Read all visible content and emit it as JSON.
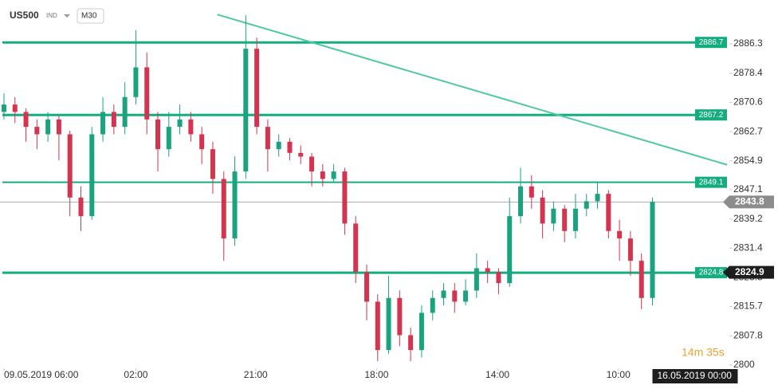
{
  "header": {
    "symbol": "US500",
    "market": "IND",
    "timeframe": "M30"
  },
  "timer": "14m 35s",
  "chart_data": {
    "type": "candlestick",
    "open": [
      2868,
      2870,
      2868,
      2864,
      2862,
      2866,
      2862,
      2845,
      2840,
      2862,
      2868,
      2864,
      2872,
      2880,
      2866,
      2858,
      2864,
      2866,
      2862,
      2858,
      2850,
      2834,
      2852,
      2885,
      2864,
      2858,
      2860,
      2857,
      2856,
      2852,
      2850,
      2852,
      2838,
      2825,
      2817,
      2804,
      2818,
      2808,
      2804,
      2814,
      2818,
      2820,
      2817,
      2820,
      2826,
      2825,
      2822,
      2840,
      2848,
      2845,
      2838,
      2842,
      2836,
      2842,
      2844,
      2846,
      2836,
      2834,
      2828,
      2818
    ],
    "high": [
      2873,
      2872,
      2869,
      2866,
      2868,
      2867,
      2863,
      2848,
      2864,
      2872,
      2870,
      2876,
      2890,
      2884,
      2868,
      2868,
      2870,
      2868,
      2864,
      2860,
      2852,
      2856,
      2894,
      2888,
      2866,
      2862,
      2861,
      2859,
      2857,
      2854,
      2854,
      2853,
      2840,
      2827,
      2819,
      2824,
      2820,
      2810,
      2816,
      2820,
      2822,
      2822,
      2823,
      2830,
      2828,
      2826,
      2845,
      2853,
      2851,
      2847,
      2844,
      2843,
      2846,
      2846,
      2849,
      2847,
      2839,
      2836,
      2830,
      2845
    ],
    "low": [
      2866,
      2865,
      2860,
      2858,
      2860,
      2855,
      2840,
      2836,
      2839,
      2860,
      2862,
      2862,
      2870,
      2862,
      2852,
      2856,
      2862,
      2860,
      2854,
      2846,
      2828,
      2832,
      2850,
      2862,
      2852,
      2856,
      2855,
      2854,
      2848,
      2848,
      2849,
      2835,
      2822,
      2812,
      2801,
      2803,
      2805,
      2801,
      2802,
      2812,
      2816,
      2814,
      2816,
      2818,
      2822,
      2819,
      2821,
      2838,
      2842,
      2834,
      2836,
      2833,
      2834,
      2840,
      2842,
      2834,
      2828,
      2824,
      2815,
      2816
    ],
    "close": [
      2870,
      2868,
      2864,
      2862,
      2866,
      2862,
      2845,
      2840,
      2862,
      2868,
      2864,
      2872,
      2880,
      2866,
      2858,
      2864,
      2866,
      2862,
      2858,
      2850,
      2834,
      2852,
      2885,
      2864,
      2858,
      2860,
      2857,
      2856,
      2852,
      2850,
      2852,
      2838,
      2825,
      2817,
      2804,
      2818,
      2808,
      2804,
      2814,
      2818,
      2820,
      2817,
      2820,
      2826,
      2825,
      2822,
      2840,
      2848,
      2845,
      2838,
      2842,
      2836,
      2842,
      2844,
      2846,
      2836,
      2834,
      2828,
      2818,
      2843.8
    ],
    "up_color": "#1aa37e",
    "down_color": "#d4344f",
    "xlim": [
      -0.36,
      66.0
    ],
    "ylim": [
      2799.1,
      2898.1
    ],
    "yticks": [
      2800.0,
      2807.8,
      2815.7,
      2823.5,
      2831.4,
      2839.2,
      2847.1,
      2854.9,
      2862.7,
      2870.6,
      2878.4,
      2886.3
    ],
    "xticks": [
      {
        "value": 0,
        "label": "09.05.2019  06:00"
      },
      {
        "value": 12.0,
        "label": "02:00"
      },
      {
        "value": 22.9,
        "label": "21:00"
      },
      {
        "value": 33.9,
        "label": "18:00"
      },
      {
        "value": 44.9,
        "label": "14:00"
      },
      {
        "value": 55.9,
        "label": "10:00"
      }
    ],
    "cursor_time": {
      "value": 59,
      "label": "16.05.2019  00:00"
    },
    "levels": [
      2886.7,
      2867.2,
      2849.1,
      2824.8
    ],
    "level_color": "#14ad80",
    "trendline": {
      "x": [
        19.4,
        65.8
      ],
      "y": [
        2894.2,
        2853.8
      ],
      "color": "#4fc9a2"
    },
    "price_markers": [
      {
        "value": 2843.8,
        "color": "#8c8c8c"
      },
      {
        "value": 2824.9,
        "color": "#1e1e1e"
      }
    ]
  }
}
